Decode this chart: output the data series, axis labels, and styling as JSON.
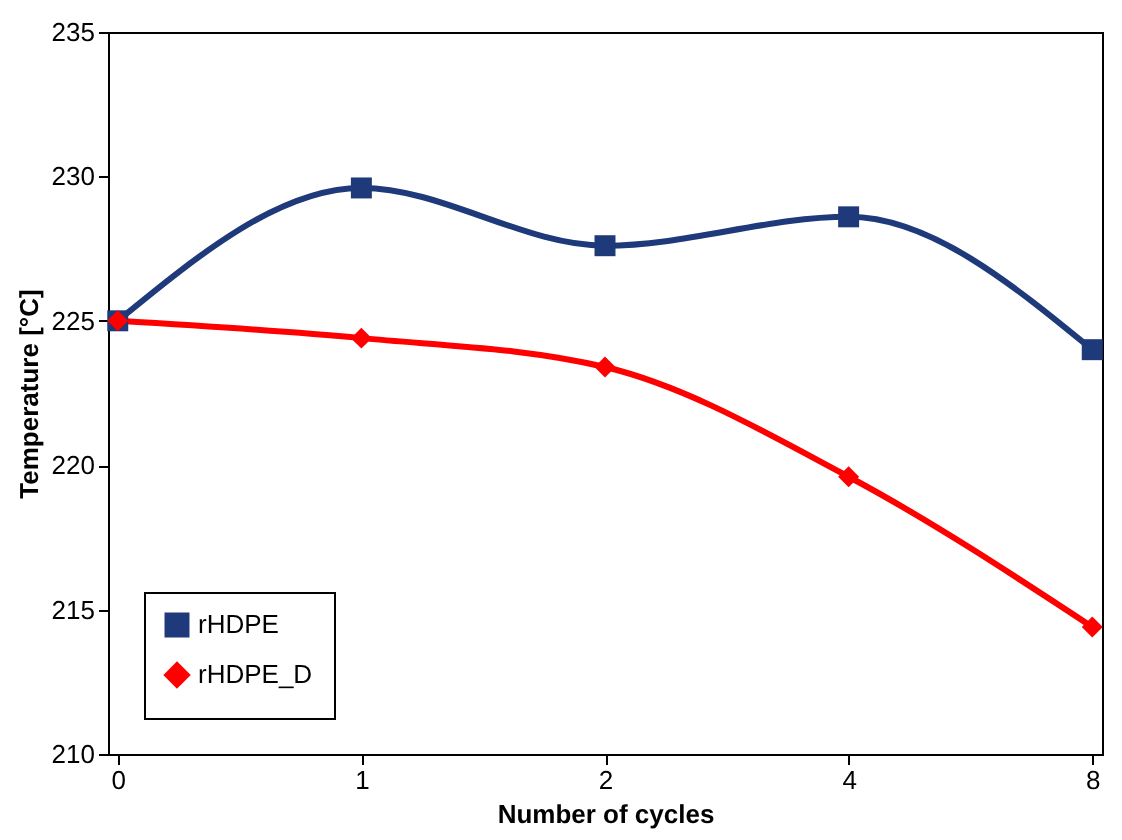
{
  "chart_data": {
    "type": "line",
    "xlabel": "Number of cycles",
    "ylabel": "Temperature [°C]",
    "categories": [
      "0",
      "1",
      "2",
      "4",
      "8"
    ],
    "series": [
      {
        "name": "rHDPE",
        "color": "#1f3a7a",
        "marker": "square",
        "values": [
          225.0,
          229.6,
          227.6,
          228.6,
          224.0
        ]
      },
      {
        "name": "rHDPE_D",
        "color": "#ff0000",
        "marker": "diamond",
        "values": [
          225.0,
          224.4,
          223.4,
          219.6,
          214.4
        ]
      }
    ],
    "ylim": [
      210,
      235
    ],
    "yticks": [
      210,
      215,
      220,
      225,
      230,
      235
    ],
    "grid": false,
    "legend": "bottom left",
    "line_style": "solid"
  }
}
